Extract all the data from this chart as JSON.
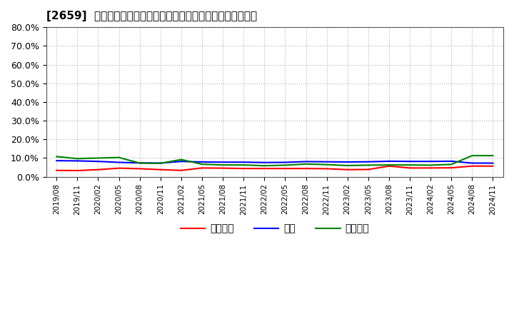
{
  "title": "[2659]  売上債権、在庫、買入債務の総資産に対する比率の推移",
  "ylabel": "",
  "xlabel": "",
  "ylim": [
    0.0,
    0.8
  ],
  "yticks": [
    0.0,
    0.1,
    0.2,
    0.3,
    0.4,
    0.5,
    0.6,
    0.7,
    0.8
  ],
  "ytick_labels": [
    "0.0%",
    "10.0%",
    "20.0%",
    "30.0%",
    "40.0%",
    "50.0%",
    "60.0%",
    "70.0%",
    "80.0%"
  ],
  "legend_labels": [
    "売上債権",
    "在庫",
    "買入債務"
  ],
  "line_colors": [
    "#ff0000",
    "#0000ff",
    "#008000"
  ],
  "line_width": 1.5,
  "background_color": "#ffffff",
  "plot_bg_color": "#ffffff",
  "grid_color": "#aaaaaa",
  "dates": [
    "2019/08",
    "2019/11",
    "2020/02",
    "2020/05",
    "2020/08",
    "2020/11",
    "2021/02",
    "2021/05",
    "2021/08",
    "2021/11",
    "2022/02",
    "2022/05",
    "2022/08",
    "2022/11",
    "2023/02",
    "2023/05",
    "2023/08",
    "2023/11",
    "2024/02",
    "2024/05",
    "2024/08",
    "2024/11"
  ],
  "urikake": [
    0.034,
    0.033,
    0.038,
    0.046,
    0.043,
    0.038,
    0.034,
    0.047,
    0.046,
    0.044,
    0.044,
    0.044,
    0.044,
    0.043,
    0.038,
    0.039,
    0.057,
    0.047,
    0.047,
    0.048,
    0.057,
    0.057
  ],
  "zaiko": [
    0.086,
    0.085,
    0.082,
    0.077,
    0.074,
    0.073,
    0.082,
    0.079,
    0.078,
    0.078,
    0.076,
    0.077,
    0.081,
    0.08,
    0.079,
    0.08,
    0.083,
    0.082,
    0.082,
    0.083,
    0.073,
    0.073
  ],
  "kainyu": [
    0.108,
    0.097,
    0.1,
    0.103,
    0.073,
    0.072,
    0.092,
    0.067,
    0.063,
    0.063,
    0.059,
    0.062,
    0.068,
    0.065,
    0.06,
    0.062,
    0.063,
    0.063,
    0.062,
    0.066,
    0.113,
    0.113
  ]
}
